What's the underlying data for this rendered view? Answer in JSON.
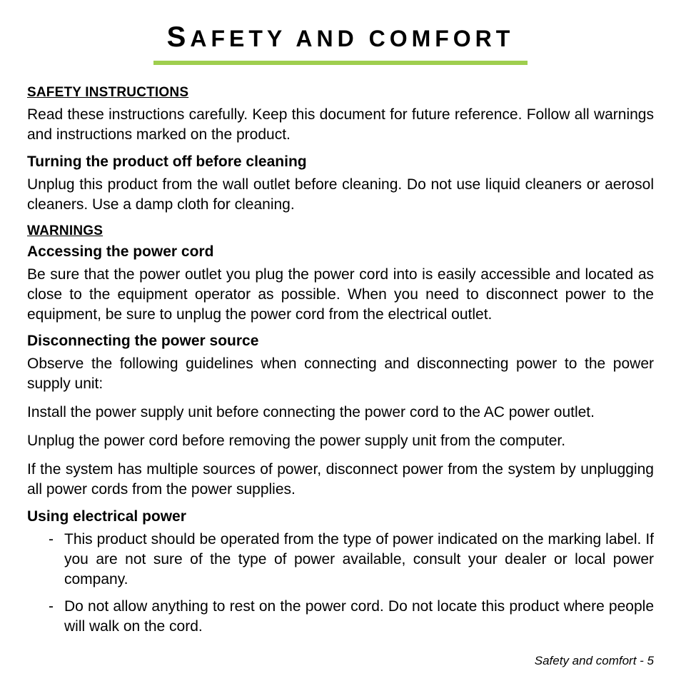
{
  "title_first": "S",
  "title_rest": "AFETY AND COMFORT",
  "rule_color": "#9fce4e",
  "section1_head": "SAFETY INSTRUCTIONS",
  "section1_para": "Read these instructions carefully. Keep this document for future reference. Follow all warnings and instructions marked on the product.",
  "sub1_head": "Turning the product off before cleaning",
  "sub1_para": "Unplug this product from the wall outlet before cleaning. Do not use liquid cleaners or aerosol cleaners. Use a damp cloth for cleaning.",
  "section2_head": "WARNINGS",
  "sub2_head": "Accessing the power cord",
  "sub2_para": "Be sure that the power outlet you plug the power cord into is easily accessible and located as close to the equipment operator as possible. When you need to disconnect power to the equipment, be sure to unplug the power cord from the electrical outlet.",
  "sub3_head": "Disconnecting the power source",
  "sub3_para1": "Observe the following guidelines when connecting and disconnecting power to the power supply unit:",
  "sub3_para2": "Install the power supply unit before connecting the power cord to the AC power outlet.",
  "sub3_para3": "Unplug the power cord before removing the power supply unit from the computer.",
  "sub3_para4": "If the system has multiple sources of power, disconnect power from the system by unplugging all power cords from the power supplies.",
  "sub4_head": "Using electrical power",
  "bullets": {
    "0": "This product should be operated from the type of power indicated on the marking label. If you are not sure of the type of power available, consult your dealer or local power company.",
    "1": "Do not allow anything to rest on the power cord. Do not locate this product where people will walk on the cord."
  },
  "footer": "Safety and comfort -  5"
}
